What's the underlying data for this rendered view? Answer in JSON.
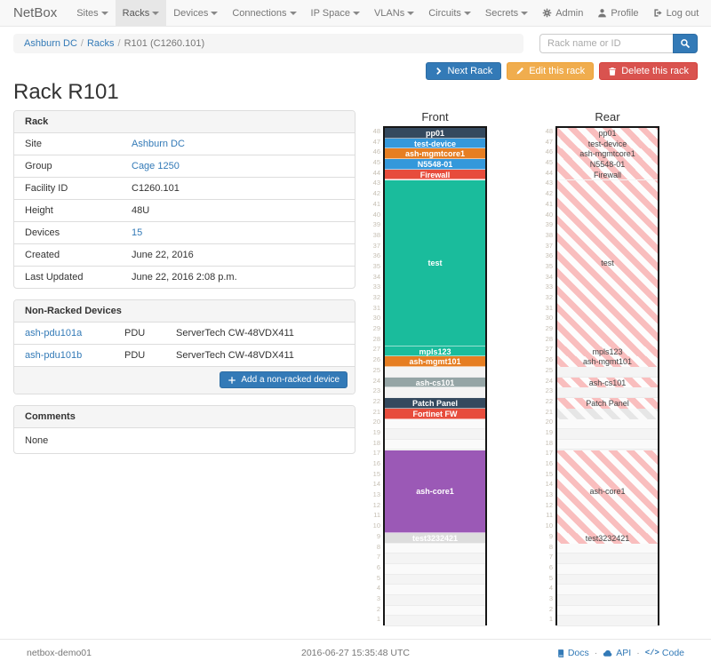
{
  "nav": {
    "brand": "NetBox",
    "items": [
      {
        "label": "Sites",
        "active": false
      },
      {
        "label": "Racks",
        "active": true
      },
      {
        "label": "Devices",
        "active": false
      },
      {
        "label": "Connections",
        "active": false
      },
      {
        "label": "IP Space",
        "active": false
      },
      {
        "label": "VLANs",
        "active": false
      },
      {
        "label": "Circuits",
        "active": false
      },
      {
        "label": "Secrets",
        "active": false
      }
    ],
    "right_items": [
      {
        "label": "Admin",
        "icon": "gear"
      },
      {
        "label": "Profile",
        "icon": "user"
      },
      {
        "label": "Log out",
        "icon": "logout"
      }
    ]
  },
  "breadcrumb": {
    "items": [
      {
        "label": "Ashburn DC",
        "link": true
      },
      {
        "label": "Racks",
        "link": true
      },
      {
        "label": "R101 (C1260.101)",
        "link": false
      }
    ]
  },
  "search": {
    "placeholder": "Rack name or ID",
    "icon": "search"
  },
  "actions": {
    "next_label": "Next Rack",
    "edit_label": "Edit this rack",
    "delete_label": "Delete this rack"
  },
  "page_title": "Rack R101",
  "rack_panel": {
    "title": "Rack",
    "rows": [
      {
        "label": "Site",
        "value": "Ashburn DC",
        "link": true
      },
      {
        "label": "Group",
        "value": "Cage 1250",
        "link": true
      },
      {
        "label": "Facility ID",
        "value": "C1260.101",
        "link": false
      },
      {
        "label": "Height",
        "value": "48U",
        "link": false
      },
      {
        "label": "Devices",
        "value": "15",
        "link": true
      },
      {
        "label": "Created",
        "value": "June 22, 2016",
        "link": false
      },
      {
        "label": "Last Updated",
        "value": "June 22, 2016 2:08 p.m.",
        "link": false
      }
    ]
  },
  "non_racked": {
    "title": "Non-Racked Devices",
    "rows": [
      {
        "name": "ash-pdu101a",
        "role": "PDU",
        "model": "ServerTech CW-48VDX411"
      },
      {
        "name": "ash-pdu101b",
        "role": "PDU",
        "model": "ServerTech CW-48VDX411"
      }
    ],
    "add_label": "Add a non-racked device"
  },
  "comments": {
    "title": "Comments",
    "body": "None"
  },
  "elevations": {
    "front_title": "Front",
    "rear_title": "Rear",
    "total_units": 48,
    "rear_occupied_stripe_color": "#f9bebe",
    "rear_front_only_stripe_color": "#e6e6e6",
    "devices": [
      {
        "name": "pp01",
        "top_unit": 48,
        "u_height": 1,
        "color": "#34495e"
      },
      {
        "name": "test-device",
        "top_unit": 47,
        "u_height": 1,
        "color": "#3498db"
      },
      {
        "name": "ash-mgmtcore1",
        "top_unit": 46,
        "u_height": 1,
        "color": "#e67e22"
      },
      {
        "name": "N5548-01",
        "top_unit": 45,
        "u_height": 1,
        "color": "#3498db"
      },
      {
        "name": "Firewall",
        "top_unit": 44,
        "u_height": 1,
        "color": "#e74c3c"
      },
      {
        "name": "test",
        "top_unit": 43,
        "u_height": 16,
        "color": "#1abc9c"
      },
      {
        "name": "mpls123",
        "top_unit": 27,
        "u_height": 1,
        "color": "#1abc9c"
      },
      {
        "name": "ash-mgmt101",
        "top_unit": 26,
        "u_height": 1,
        "color": "#e67e22"
      },
      {
        "name": "ash-cs101",
        "top_unit": 24,
        "u_height": 1,
        "color": "#95a5a6"
      },
      {
        "name": "Patch Panel",
        "top_unit": 22,
        "u_height": 1,
        "color": "#34495e"
      },
      {
        "name": "Fortinet FW",
        "top_unit": 21,
        "u_height": 1,
        "color": "#e74c3c",
        "rear_style": "front-only"
      },
      {
        "name": "ash-core1",
        "top_unit": 17,
        "u_height": 8,
        "color": "#9b59b6"
      },
      {
        "name": "test3232421",
        "top_unit": 9,
        "u_height": 1,
        "color": "#dddddd",
        "front_text_color": "#ffffff"
      }
    ]
  },
  "footer": {
    "hostname": "netbox-demo01",
    "timestamp": "2016-06-27 15:35:48 UTC",
    "links": [
      {
        "label": "Docs",
        "icon": "book"
      },
      {
        "label": "API",
        "icon": "cloud"
      },
      {
        "label": "Code",
        "icon": "code"
      }
    ]
  }
}
